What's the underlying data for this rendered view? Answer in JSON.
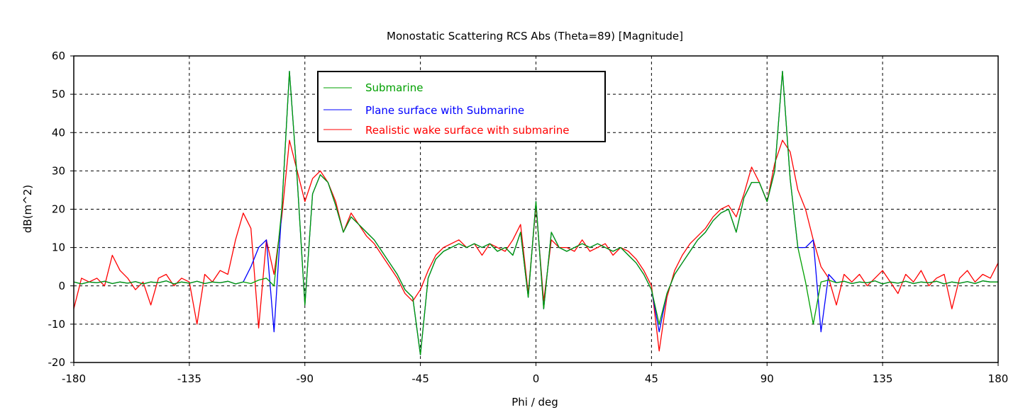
{
  "chart_data": {
    "type": "line",
    "title": "Monostatic Scattering RCS Abs (Theta=89) [Magnitude]",
    "xlabel": "Phi / deg",
    "ylabel": "dB(m^2)",
    "xlim": [
      -180,
      180
    ],
    "ylim": [
      -20,
      60
    ],
    "xticks": [
      -180,
      -135,
      -90,
      -45,
      0,
      45,
      90,
      135,
      180
    ],
    "yticks": [
      -20,
      -10,
      0,
      10,
      20,
      30,
      40,
      50,
      60
    ],
    "grid": true,
    "legend_position": "top-left-center",
    "x": [
      -180,
      -177,
      -174,
      -171,
      -168,
      -165,
      -162,
      -159,
      -156,
      -153,
      -150,
      -147,
      -144,
      -141,
      -138,
      -135,
      -132,
      -129,
      -126,
      -123,
      -120,
      -117,
      -114,
      -111,
      -108,
      -105,
      -102,
      -99,
      -96,
      -93,
      -90,
      -87,
      -84,
      -81,
      -78,
      -75,
      -72,
      -69,
      -66,
      -63,
      -60,
      -57,
      -54,
      -51,
      -48,
      -45,
      -42,
      -39,
      -36,
      -33,
      -30,
      -27,
      -24,
      -21,
      -18,
      -15,
      -12,
      -9,
      -6,
      -3,
      0,
      3,
      6,
      9,
      12,
      15,
      18,
      21,
      24,
      27,
      30,
      33,
      36,
      39,
      42,
      45,
      48,
      51,
      54,
      57,
      60,
      63,
      66,
      69,
      72,
      75,
      78,
      81,
      84,
      87,
      90,
      93,
      96,
      99,
      102,
      105,
      108,
      111,
      114,
      117,
      120,
      123,
      126,
      129,
      132,
      135,
      138,
      141,
      144,
      147,
      150,
      153,
      156,
      159,
      162,
      165,
      168,
      171,
      174,
      177,
      180
    ],
    "series": [
      {
        "name": "Realistic wake surface with submarine",
        "color": "#ff0000",
        "values": [
          -6,
          2,
          1,
          2,
          0,
          8,
          4,
          2,
          -1,
          1,
          -5,
          2,
          3,
          0,
          2,
          1,
          -10,
          3,
          1,
          4,
          3,
          12,
          19,
          15,
          -11,
          12,
          3,
          18,
          38,
          30,
          22,
          28,
          30,
          27,
          22,
          14,
          19,
          16,
          13,
          11,
          8,
          5,
          2,
          -2,
          -4,
          -1,
          4,
          8,
          10,
          11,
          12,
          10,
          11,
          8,
          11,
          10,
          9,
          12,
          16,
          -2,
          21,
          -4,
          12,
          10,
          10,
          9,
          12,
          9,
          10,
          11,
          8,
          10,
          9,
          7,
          4,
          0,
          -17,
          -3,
          4,
          8,
          11,
          13,
          15,
          18,
          20,
          21,
          18,
          24,
          31,
          27,
          22,
          32,
          38,
          35,
          25,
          20,
          12,
          5,
          2,
          -5,
          3,
          1,
          3,
          0,
          2,
          4,
          1,
          -2,
          3,
          1,
          4,
          0,
          2,
          3,
          -6,
          2,
          4,
          1,
          3,
          2,
          6
        ]
      },
      {
        "name": "Plane surface with Submarine",
        "color": "#0000ff",
        "values": [
          1,
          0.5,
          1,
          0.8,
          1.2,
          0.6,
          1,
          0.7,
          1.1,
          0.5,
          1,
          0.8,
          1.3,
          0.5,
          1,
          0.7,
          1.2,
          0.6,
          1,
          0.8,
          1.2,
          0.5,
          1,
          5,
          10,
          12,
          -12,
          20,
          56,
          28,
          -5,
          24,
          29,
          27,
          21,
          14,
          18,
          16,
          14,
          12,
          9,
          6,
          3,
          -1,
          -3,
          -18,
          2,
          7,
          9,
          10,
          11,
          10,
          11,
          10,
          11,
          9,
          10,
          8,
          14,
          -3,
          22,
          -6,
          14,
          10,
          9,
          10,
          11,
          10,
          11,
          10,
          9,
          10,
          8,
          6,
          3,
          -1,
          -12,
          -2,
          3,
          6,
          9,
          12,
          14,
          17,
          19,
          20,
          14,
          23,
          27,
          27,
          22,
          30,
          56,
          28,
          10,
          10,
          12,
          -12,
          3,
          0.8,
          1.2,
          0.6,
          1,
          0.8,
          1.3,
          0.5,
          1,
          0.7,
          1.2,
          0.6,
          1,
          0.8,
          1.2,
          0.5,
          1,
          0.7,
          1.1,
          0.6,
          1.3,
          1,
          1
        ]
      },
      {
        "name": "Submarine",
        "color": "#00a000",
        "values": [
          1,
          0.5,
          1,
          0.8,
          1.2,
          0.6,
          1,
          0.7,
          1.1,
          0.5,
          1,
          0.8,
          1.3,
          0.5,
          1,
          0.7,
          1.2,
          0.6,
          1,
          0.8,
          1.2,
          0.5,
          1,
          0.6,
          1.5,
          2,
          0,
          20,
          56,
          28,
          -5,
          24,
          29,
          27,
          21,
          14,
          18,
          16,
          14,
          12,
          9,
          6,
          3,
          -1,
          -3,
          -18,
          2,
          7,
          9,
          10,
          11,
          10,
          11,
          10,
          11,
          9,
          10,
          8,
          14,
          -3,
          22,
          -6,
          14,
          10,
          9,
          10,
          11,
          10,
          11,
          10,
          9,
          10,
          8,
          6,
          3,
          -1,
          -10,
          -2,
          3,
          6,
          9,
          12,
          14,
          17,
          19,
          20,
          14,
          23,
          27,
          27,
          22,
          30,
          56,
          28,
          10,
          1,
          -10,
          1,
          1.5,
          0.8,
          1.2,
          0.6,
          1,
          0.8,
          1.3,
          0.5,
          1,
          0.7,
          1.2,
          0.6,
          1,
          0.8,
          1.2,
          0.5,
          1,
          0.7,
          1.1,
          0.6,
          1.3,
          1,
          1
        ]
      }
    ],
    "legend": [
      {
        "label": "Submarine",
        "color": "#00a000"
      },
      {
        "label": "Plane surface with Submarine",
        "color": "#0000ff"
      },
      {
        "label": "Realistic wake surface with submarine",
        "color": "#ff0000"
      }
    ]
  }
}
